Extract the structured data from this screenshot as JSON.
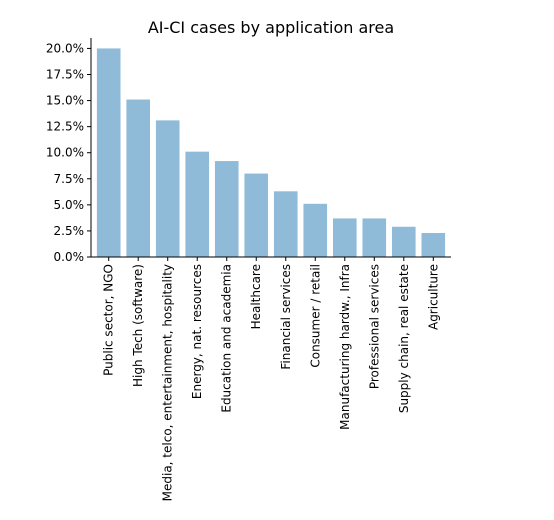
{
  "chart_data": {
    "type": "bar",
    "title": "AI-CI cases by application area",
    "xlabel": "",
    "ylabel": "",
    "categories": [
      "Public sector, NGO",
      "High Tech (software)",
      "Media, telco, entertainment, hospitality",
      "Energy, nat. resources",
      "Education and academia",
      "Healthcare",
      "Financial services",
      "Consumer / retail",
      "Manufacturing hardw., Infra",
      "Professional services",
      "Supply chain, real estate",
      "Agriculture"
    ],
    "values": [
      20.0,
      15.1,
      13.1,
      10.1,
      9.2,
      8.0,
      6.3,
      5.1,
      3.7,
      3.7,
      2.9,
      2.3
    ],
    "yticks": [
      0,
      2.5,
      5,
      7.5,
      10,
      12.5,
      15,
      17.5,
      20
    ],
    "ytick_labels": [
      "0.0%",
      "2.5%",
      "5.0%",
      "7.5%",
      "10.0%",
      "12.5%",
      "15.0%",
      "17.5%",
      "20.0%"
    ],
    "ylim": [
      0,
      21
    ],
    "grid": false,
    "legend": "none",
    "bar_color": "#8fbbd9",
    "axis_color": "#000000"
  }
}
